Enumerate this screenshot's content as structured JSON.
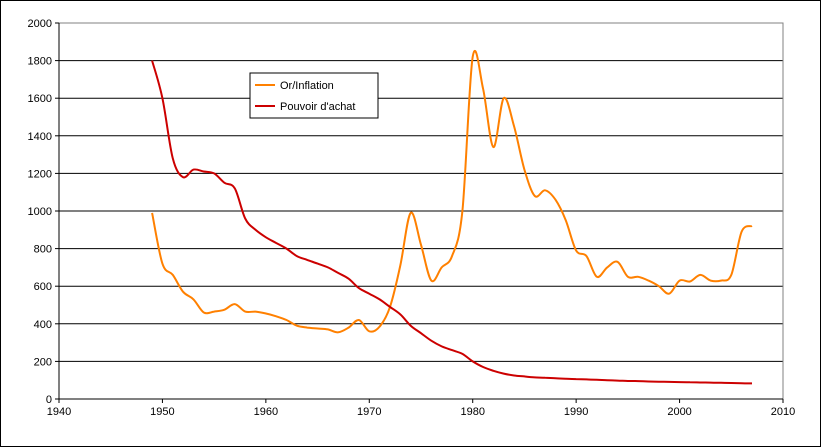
{
  "chart_data": {
    "type": "line",
    "title": "",
    "xlabel": "",
    "ylabel": "",
    "xlim": [
      1940,
      2010
    ],
    "ylim": [
      0,
      2000
    ],
    "x_ticks": [
      1940,
      1950,
      1960,
      1970,
      1980,
      1990,
      2000,
      2010
    ],
    "y_ticks": [
      0,
      200,
      400,
      600,
      800,
      1000,
      1200,
      1400,
      1600,
      1800,
      2000
    ],
    "grid": "horizontal",
    "legend_position": "upper-left",
    "series": [
      {
        "name": "Or/Inflation",
        "color": "#FF8000",
        "x": [
          1949,
          1950,
          1951,
          1952,
          1953,
          1954,
          1955,
          1956,
          1957,
          1958,
          1959,
          1960,
          1961,
          1962,
          1963,
          1964,
          1965,
          1966,
          1967,
          1968,
          1969,
          1970,
          1971,
          1972,
          1973,
          1974,
          1975,
          1976,
          1977,
          1978,
          1979,
          1980,
          1981,
          1982,
          1983,
          1984,
          1985,
          1986,
          1987,
          1988,
          1989,
          1990,
          1991,
          1992,
          1993,
          1994,
          1995,
          1996,
          1997,
          1998,
          1999,
          2000,
          2001,
          2002,
          2003,
          2004,
          2005,
          2006,
          2007
        ],
        "y": [
          990,
          720,
          660,
          570,
          530,
          460,
          465,
          475,
          505,
          465,
          465,
          455,
          440,
          420,
          390,
          380,
          375,
          370,
          355,
          380,
          420,
          360,
          385,
          490,
          710,
          990,
          820,
          630,
          700,
          760,
          1000,
          1820,
          1650,
          1340,
          1600,
          1450,
          1220,
          1080,
          1110,
          1060,
          950,
          790,
          760,
          650,
          700,
          730,
          650,
          650,
          630,
          600,
          560,
          630,
          625,
          660,
          630,
          630,
          660,
          890,
          920
        ]
      },
      {
        "name": "Pouvoir d'achat",
        "color": "#CC0000",
        "x": [
          1949,
          1950,
          1951,
          1952,
          1953,
          1954,
          1955,
          1956,
          1957,
          1958,
          1959,
          1960,
          1961,
          1962,
          1963,
          1964,
          1965,
          1966,
          1967,
          1968,
          1969,
          1970,
          1971,
          1972,
          1973,
          1974,
          1975,
          1976,
          1977,
          1978,
          1979,
          1980,
          1981,
          1982,
          1983,
          1984,
          1985,
          1986,
          1987,
          1988,
          1989,
          1990,
          1991,
          1992,
          1993,
          1994,
          1995,
          1996,
          1997,
          1998,
          1999,
          2000,
          2001,
          2002,
          2003,
          2004,
          2005,
          2006,
          2007
        ],
        "y": [
          1800,
          1600,
          1280,
          1180,
          1220,
          1210,
          1200,
          1150,
          1120,
          960,
          900,
          860,
          830,
          800,
          760,
          740,
          720,
          700,
          670,
          640,
          590,
          560,
          530,
          490,
          450,
          390,
          350,
          310,
          280,
          260,
          240,
          200,
          170,
          150,
          135,
          125,
          120,
          115,
          113,
          110,
          108,
          106,
          104,
          102,
          100,
          98,
          96,
          95,
          93,
          92,
          91,
          90,
          89,
          88,
          87,
          86,
          85,
          84,
          83
        ]
      }
    ]
  }
}
